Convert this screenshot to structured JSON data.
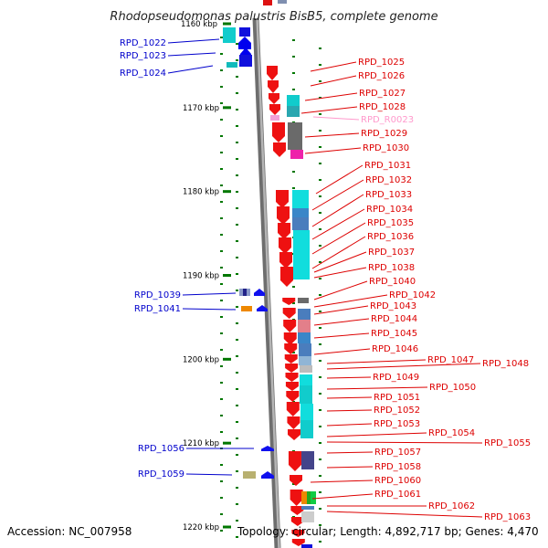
{
  "title": "Rhodopseudomonas palustris BisB5, complete genome",
  "footer": {
    "accession": "Accession: NC_007958",
    "summary": "Topology: circular; Length: 4,892,717 bp; Genes: 4,470"
  },
  "colors": {
    "left_label": "#0000cc",
    "right_label": "#dd0000",
    "rna_label": "#ff99cc",
    "backbone": "#8a8a8a",
    "tick": "#007700"
  },
  "scale": {
    "start_kbp": 1160,
    "end_kbp": 1220,
    "major_ticks": [
      {
        "label": "1160 kbp",
        "kbp": 1160
      },
      {
        "label": "1170 kbp",
        "kbp": 1170
      },
      {
        "label": "1180 kbp",
        "kbp": 1180
      },
      {
        "label": "1190 kbp",
        "kbp": 1190
      },
      {
        "label": "1200 kbp",
        "kbp": 1200
      },
      {
        "label": "1210 kbp",
        "kbp": 1210
      },
      {
        "label": "1220 kbp",
        "kbp": 1220
      }
    ]
  },
  "left_genes": [
    "RPD_1022",
    "RPD_1023",
    "RPD_1024",
    "RPD_1039",
    "RPD_1041",
    "RPD_1056",
    "RPD_1059"
  ],
  "right_genes": [
    "RPD_1025",
    "RPD_1026",
    "RPD_1027",
    "RPD_1028",
    "RPD_R0023",
    "RPD_1029",
    "RPD_1030",
    "RPD_1031",
    "RPD_1032",
    "RPD_1033",
    "RPD_1034",
    "RPD_1035",
    "RPD_1036",
    "RPD_1037",
    "RPD_1038",
    "RPD_1040",
    "RPD_1042",
    "RPD_1043",
    "RPD_1044",
    "RPD_1045",
    "RPD_1046",
    "RPD_1047",
    "RPD_1048",
    "RPD_1049",
    "RPD_1050",
    "RPD_1051",
    "RPD_1052",
    "RPD_1053",
    "RPD_1054",
    "RPD_1055",
    "RPD_1057",
    "RPD_1058",
    "RPD_1060",
    "RPD_1061",
    "RPD_1062",
    "RPD_1063"
  ]
}
